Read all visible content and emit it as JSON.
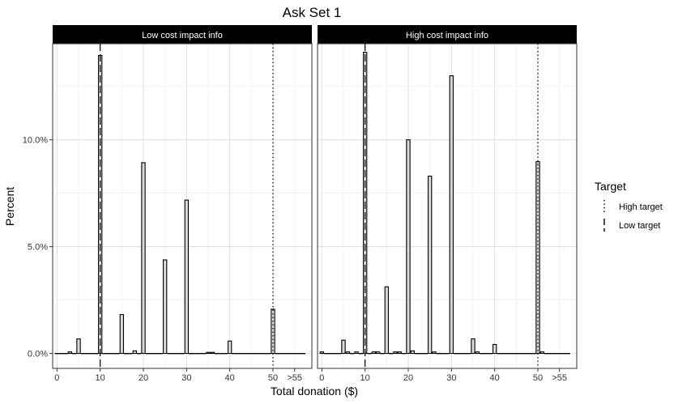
{
  "chart_data": {
    "type": "bar",
    "title": "Ask Set 1",
    "xlabel": "Total donation ($)",
    "ylabel": "Percent",
    "xlim": [
      -1,
      59
    ],
    "ylim": [
      -0.7,
      14.5
    ],
    "x_ticks": [
      {
        "value": 0,
        "label": "0"
      },
      {
        "value": 10,
        "label": "10"
      },
      {
        "value": 20,
        "label": "20"
      },
      {
        "value": 30,
        "label": "30"
      },
      {
        "value": 40,
        "label": "40"
      },
      {
        "value": 50,
        "label": "50"
      },
      {
        "value": 55,
        "label": ">55"
      }
    ],
    "y_ticks": [
      {
        "value": 0,
        "label": "0.0%"
      },
      {
        "value": 5,
        "label": "5.0%"
      },
      {
        "value": 10,
        "label": "10.0%"
      }
    ],
    "grid": true,
    "legend": {
      "title": "Target",
      "position": "right",
      "entries": [
        {
          "label": "High target",
          "style": "dotted"
        },
        {
          "label": "Low target",
          "style": "dashed"
        }
      ]
    },
    "reference_lines": [
      {
        "x": 10,
        "style": "dashed"
      },
      {
        "x": 50,
        "style": "dotted"
      }
    ],
    "panels": [
      {
        "name": "Low cost impact info",
        "x": [
          0,
          1,
          2,
          3,
          4,
          5,
          6,
          7,
          8,
          9,
          10,
          11,
          12,
          13,
          14,
          15,
          16,
          17,
          18,
          19,
          20,
          21,
          22,
          23,
          24,
          25,
          26,
          27,
          28,
          29,
          30,
          31,
          32,
          33,
          34,
          35,
          36,
          37,
          38,
          39,
          40,
          41,
          42,
          43,
          44,
          45,
          46,
          47,
          48,
          49,
          50,
          51,
          52,
          53,
          54,
          55,
          56,
          57
        ],
        "values": [
          0,
          0,
          0,
          0.07,
          0,
          0.68,
          0,
          0,
          0,
          0,
          13.95,
          0,
          0,
          0,
          0,
          1.82,
          0,
          0,
          0.12,
          0,
          8.93,
          0,
          0,
          0,
          0,
          4.38,
          0,
          0,
          0,
          0,
          7.18,
          0,
          0,
          0,
          0,
          0.05,
          0.05,
          0,
          0,
          0,
          0.58,
          0,
          0,
          0,
          0,
          0,
          0,
          0,
          0,
          0,
          2.07,
          0,
          0,
          0,
          0,
          0,
          0,
          0
        ]
      },
      {
        "name": "High cost impact info",
        "x": [
          0,
          1,
          2,
          3,
          4,
          5,
          6,
          7,
          8,
          9,
          10,
          11,
          12,
          13,
          14,
          15,
          16,
          17,
          18,
          19,
          20,
          21,
          22,
          23,
          24,
          25,
          26,
          27,
          28,
          29,
          30,
          31,
          32,
          33,
          34,
          35,
          36,
          37,
          38,
          39,
          40,
          41,
          42,
          43,
          44,
          45,
          46,
          47,
          48,
          49,
          50,
          51,
          52,
          53,
          54,
          55,
          56,
          57
        ],
        "values": [
          0.07,
          0,
          0,
          0,
          0,
          0.62,
          0.07,
          0,
          0.07,
          0,
          14.1,
          0,
          0.07,
          0.07,
          0,
          3.12,
          0,
          0.07,
          0.07,
          0,
          10.0,
          0.12,
          0,
          0,
          0,
          8.3,
          0.07,
          0,
          0,
          0,
          13.0,
          0,
          0,
          0,
          0,
          0.68,
          0.07,
          0,
          0,
          0,
          0.42,
          0,
          0,
          0,
          0,
          0,
          0,
          0,
          0,
          0,
          8.98,
          0.07,
          0,
          0,
          0,
          0,
          0,
          0
        ]
      }
    ]
  }
}
